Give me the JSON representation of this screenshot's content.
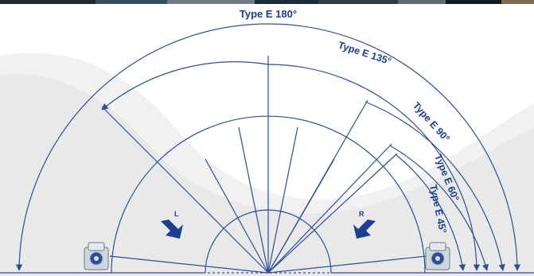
{
  "colors": {
    "line": "#2e4e96",
    "label": "#1e3f8a",
    "arrow_fill": "#1c3f8f",
    "wave_light": "#f1f1f1",
    "wave_mid": "#e6e6e6",
    "strip": [
      "#1f2a33",
      "#3a4d5c",
      "#6c7b84",
      "#1a2b3a",
      "#2c3b46",
      "#5d6a73",
      "#0f1c28",
      "#7d6c4e"
    ]
  },
  "labels": {
    "e180": "Type E 180°",
    "e135": "Type E 135°",
    "e90": "Type E 90°",
    "e60": "Type E 60°",
    "e45": "Type E 45°",
    "left": "L",
    "right": "R"
  },
  "icons": {
    "left_device": "camera-sensor-icon",
    "right_device": "camera-sensor-icon",
    "left_arrow": "arrow-down-right-icon",
    "right_arrow": "arrow-down-left-icon"
  }
}
